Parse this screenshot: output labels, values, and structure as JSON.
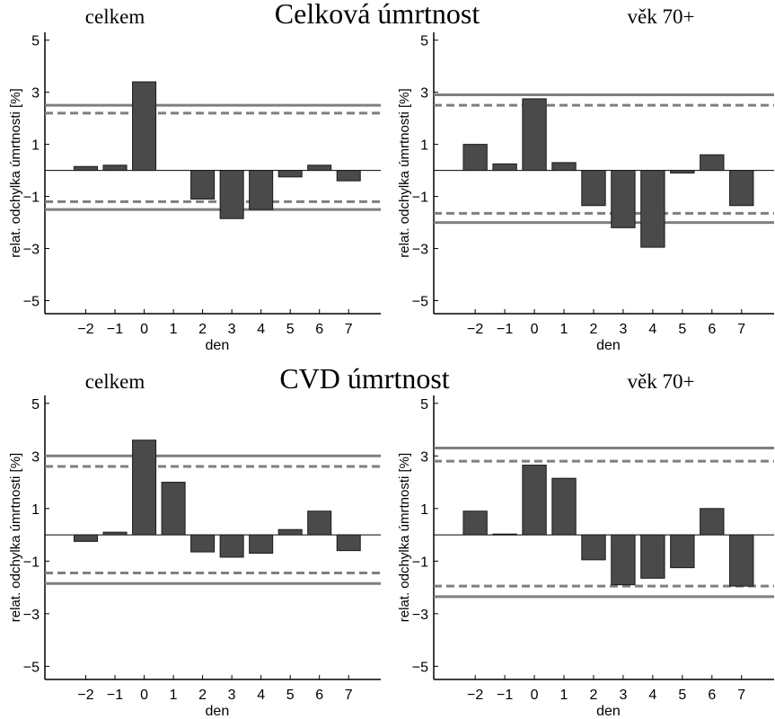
{
  "section_titles": [
    "Celková úmrtnost",
    "CVD úmrtnost"
  ],
  "colors": {
    "bar_fill": "#4a4a4a",
    "bar_stroke": "#1a1a1a",
    "threshold_line": "#7f7f7f",
    "axis": "#000000"
  },
  "chart_data": [
    {
      "type": "bar",
      "panel_label": "celkem",
      "xlabel": "den",
      "ylabel": "relat. odchylka úmrtnosti [%]",
      "categories": [
        "−2",
        "−1",
        "0",
        "1",
        "2",
        "3",
        "4",
        "5",
        "6",
        "7"
      ],
      "values": [
        0.15,
        0.2,
        3.4,
        0,
        -1.1,
        -1.85,
        -1.5,
        -0.25,
        0.2,
        -0.4
      ],
      "yticks": [
        "−5",
        "−3",
        "−1",
        "1",
        "3",
        "5"
      ],
      "ylim": [
        -5.5,
        5.3
      ],
      "xlim": [
        -3.4,
        8.1
      ],
      "solid_lines": [
        2.5,
        -1.5
      ],
      "dashed_lines": [
        2.2,
        -1.2
      ],
      "grid": false
    },
    {
      "type": "bar",
      "panel_label": "věk 70+",
      "xlabel": "den",
      "ylabel": "relat. odchylka úmrtnosti [%]",
      "categories": [
        "−2",
        "−1",
        "0",
        "1",
        "2",
        "3",
        "4",
        "5",
        "6",
        "7"
      ],
      "values": [
        1.0,
        0.25,
        2.75,
        0.3,
        -1.35,
        -2.2,
        -2.95,
        -0.1,
        0.6,
        -1.35
      ],
      "yticks": [
        "−5",
        "−3",
        "−1",
        "1",
        "3",
        "5"
      ],
      "ylim": [
        -5.5,
        5.3
      ],
      "xlim": [
        -3.4,
        8.1
      ],
      "solid_lines": [
        2.9,
        -2.0
      ],
      "dashed_lines": [
        2.5,
        -1.65
      ],
      "grid": false
    },
    {
      "type": "bar",
      "panel_label": "celkem",
      "xlabel": "den",
      "ylabel": "relat. odchylka úmrtnosti [%]",
      "categories": [
        "−2",
        "−1",
        "0",
        "1",
        "2",
        "3",
        "4",
        "5",
        "6",
        "7"
      ],
      "values": [
        -0.25,
        0.1,
        3.6,
        2.0,
        -0.65,
        -0.85,
        -0.7,
        0.2,
        0.9,
        -0.6
      ],
      "yticks": [
        "−5",
        "−3",
        "−1",
        "1",
        "3",
        "5"
      ],
      "ylim": [
        -5.5,
        5.3
      ],
      "xlim": [
        -3.4,
        8.1
      ],
      "solid_lines": [
        3.0,
        -1.85
      ],
      "dashed_lines": [
        2.6,
        -1.45
      ],
      "grid": false
    },
    {
      "type": "bar",
      "panel_label": "věk 70+",
      "xlabel": "den",
      "ylabel": "relat. odchylka úmrtnosti [%]",
      "categories": [
        "−2",
        "−1",
        "0",
        "1",
        "2",
        "3",
        "4",
        "5",
        "6",
        "7"
      ],
      "values": [
        0.9,
        0.03,
        2.65,
        2.15,
        -0.95,
        -1.9,
        -1.65,
        -1.25,
        1.0,
        -1.95
      ],
      "yticks": [
        "−5",
        "−3",
        "−1",
        "1",
        "3",
        "5"
      ],
      "ylim": [
        -5.5,
        5.3
      ],
      "xlim": [
        -3.4,
        8.1
      ],
      "solid_lines": [
        3.3,
        -2.35
      ],
      "dashed_lines": [
        2.8,
        -1.95
      ],
      "grid": false
    }
  ]
}
